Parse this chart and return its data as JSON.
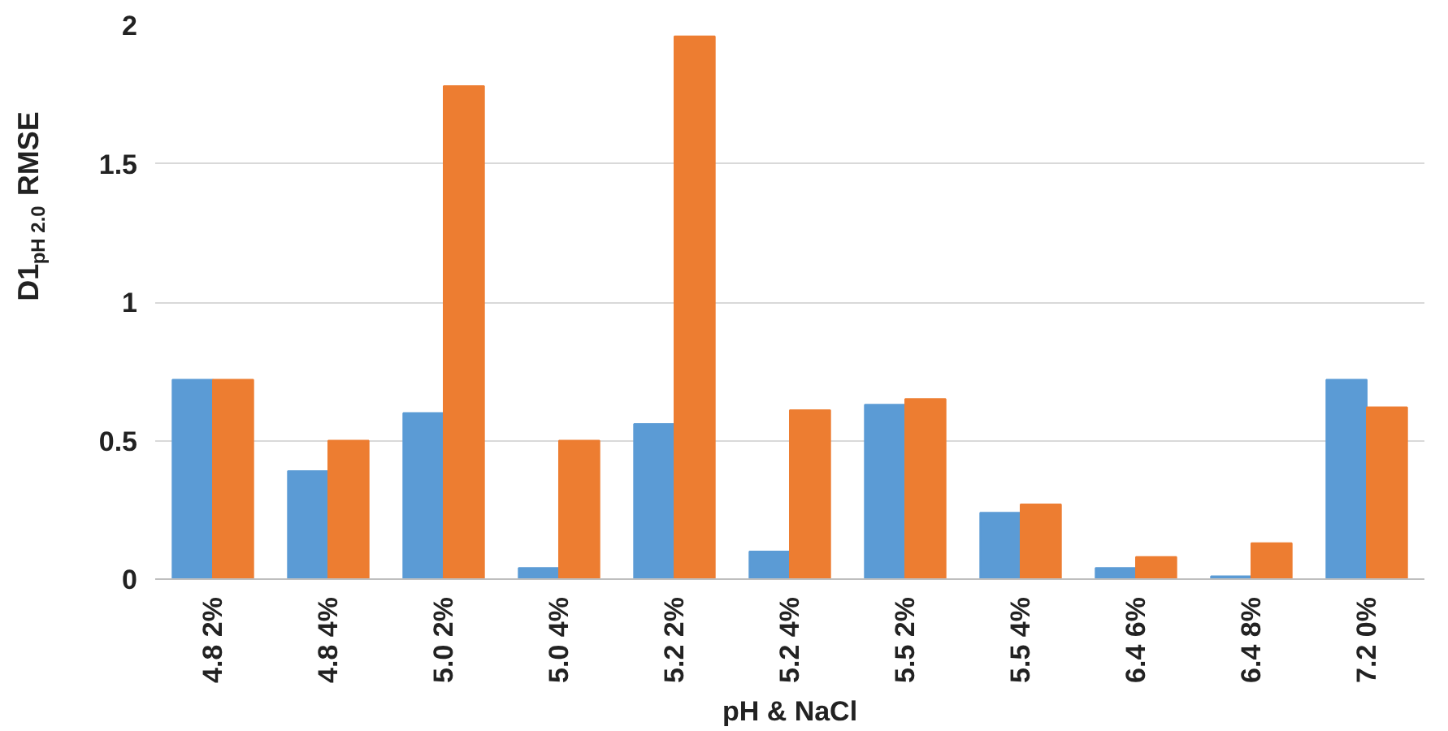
{
  "chart_data": {
    "type": "bar",
    "xlabel": "pH & NaCl",
    "ylabel": "D1$_{pH 2.0}$ RMSE",
    "categories": [
      "4.8 2%",
      "4.8 4%",
      "5.0 2%",
      "5.0 4%",
      "5.2 2%",
      "5.2 4%",
      "5.5 2%",
      "5.5 4%",
      "6.4 6%",
      "6.4 8%",
      "7.2 0%"
    ],
    "series": [
      {
        "color": "#5b9bd5",
        "values": [
          0.72,
          0.39,
          0.6,
          0.04,
          0.56,
          0.1,
          0.63,
          0.24,
          0.04,
          0.01,
          0.72
        ]
      },
      {
        "color": "#ed7d31",
        "values": [
          0.72,
          0.5,
          1.78,
          0.5,
          1.96,
          0.61,
          0.65,
          0.27,
          0.08,
          0.13,
          0.62
        ]
      }
    ],
    "ylim": [
      0,
      2
    ],
    "yticks": [
      0,
      0.5,
      1,
      1.5,
      2
    ],
    "grid": "y"
  }
}
